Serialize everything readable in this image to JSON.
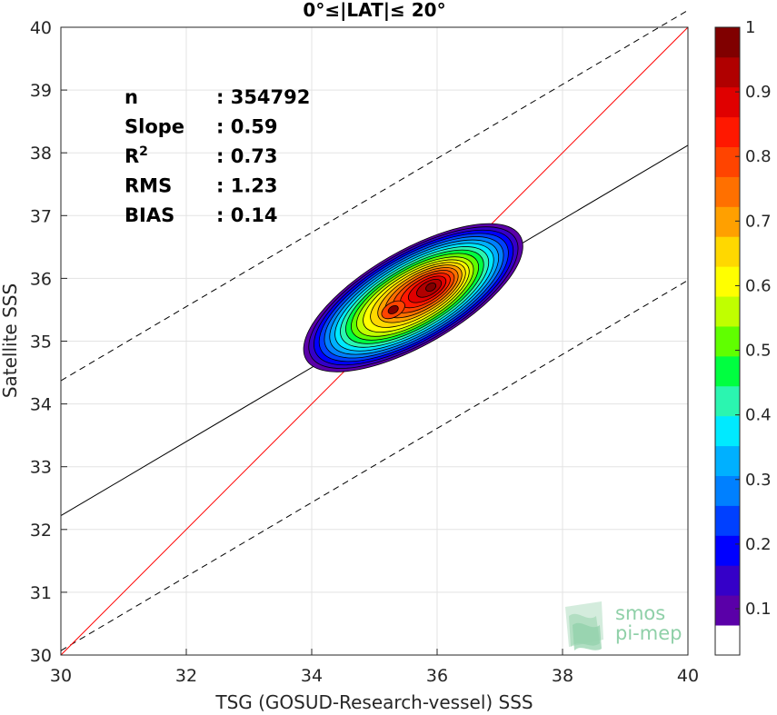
{
  "chart_data": {
    "type": "scatter",
    "title": "0°≤|LAT|≤ 20°",
    "xlabel": "TSG (GOSUD-Research-vessel) SSS",
    "ylabel": "Satellite SSS",
    "xlim": [
      30,
      40
    ],
    "ylim": [
      30,
      40
    ],
    "xticks": [
      "30",
      "32",
      "34",
      "36",
      "38",
      "40"
    ],
    "yticks": [
      "30",
      "31",
      "32",
      "33",
      "34",
      "35",
      "36",
      "37",
      "38",
      "39",
      "40"
    ],
    "grid": true,
    "stats": [
      {
        "label": "n",
        "value": ": 354792"
      },
      {
        "label": "Slope",
        "value": ": 0.59"
      },
      {
        "label": "R",
        "sup": "2",
        "value": ": 0.73"
      },
      {
        "label": "RMS",
        "value": ": 1.23"
      },
      {
        "label": "BIAS",
        "value": ": 0.14"
      }
    ],
    "fit_line": {
      "slope": 0.59,
      "intercept_at_30": 32.22,
      "color": "#000000"
    },
    "envelope_offset": 2.15,
    "identity_line": {
      "color": "#ff0000"
    },
    "density_peaks": [
      {
        "x": 35.3,
        "y": 35.5
      },
      {
        "x": 36.05,
        "y": 35.95
      }
    ],
    "colorbar": {
      "ticks": [
        "0.1",
        "0.2",
        "0.3",
        "0.4",
        "0.5",
        "0.6",
        "0.7",
        "0.8",
        "0.9",
        "1"
      ],
      "colors": [
        "#ffffff",
        "#5a00a8",
        "#3500c8",
        "#0000ff",
        "#0040ff",
        "#0080ff",
        "#00b0ff",
        "#00eaff",
        "#2bf5b0",
        "#00ff40",
        "#60ff00",
        "#c0ff00",
        "#ffff00",
        "#ffd800",
        "#ffa000",
        "#ff7000",
        "#ff4400",
        "#ff1800",
        "#e00000",
        "#b00000",
        "#800000"
      ]
    },
    "watermark": {
      "line1": "smos",
      "line2": "pi-mep"
    }
  }
}
